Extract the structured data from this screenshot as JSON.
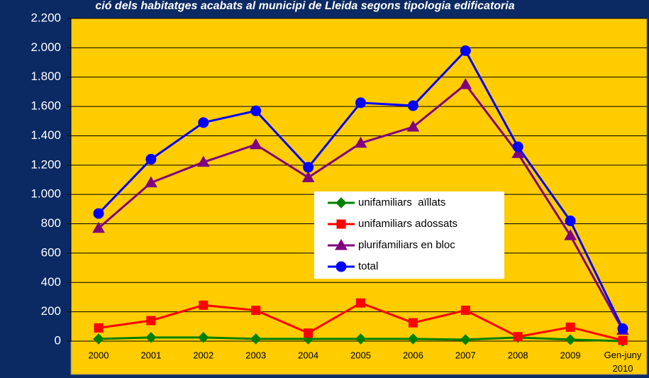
{
  "chart_data": {
    "type": "line",
    "title": "ció dels habitatges acabats al municipi de Lleida segons tipologia edificatoria",
    "categories": [
      "2000",
      "2001",
      "2002",
      "2003",
      "2004",
      "2005",
      "2006",
      "2007",
      "2008",
      "2009",
      "Gen-juny 2010"
    ],
    "series": [
      {
        "name": "unifamiliars  aïllats",
        "color": "#008000",
        "marker": "diamond",
        "values": [
          15,
          25,
          25,
          15,
          15,
          15,
          15,
          10,
          25,
          10,
          0
        ]
      },
      {
        "name": "unifamiliars adossats",
        "color": "#ff0000",
        "marker": "square",
        "values": [
          90,
          140,
          245,
          210,
          55,
          260,
          125,
          210,
          30,
          95,
          5
        ]
      },
      {
        "name": "plurifamiliars en bloc",
        "color": "#800080",
        "marker": "triangle",
        "values": [
          770,
          1080,
          1220,
          1340,
          1115,
          1350,
          1460,
          1750,
          1280,
          720,
          75
        ]
      },
      {
        "name": "total",
        "color": "#0000ff",
        "marker": "circle",
        "values": [
          870,
          1240,
          1490,
          1570,
          1185,
          1625,
          1605,
          1980,
          1325,
          820,
          85
        ]
      }
    ],
    "ylim": [
      0,
      2200
    ],
    "yticks": [
      0,
      200,
      400,
      600,
      800,
      {
        "value": 1000,
        "label": "1.000"
      },
      {
        "value": 1200,
        "label": "1.200"
      },
      {
        "value": 1400,
        "label": "1.400"
      },
      {
        "value": 1600,
        "label": "1.600"
      },
      {
        "value": 1800,
        "label": "1.800"
      },
      {
        "value": 2000,
        "label": "2.000"
      },
      {
        "value": 2200,
        "label": "2.200"
      }
    ],
    "grid": true,
    "legend": "center"
  }
}
